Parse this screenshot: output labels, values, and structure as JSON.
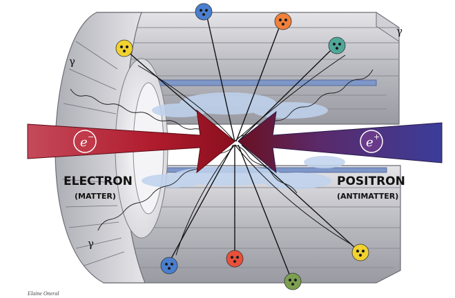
{
  "labels": {
    "electron": "ELECTRON",
    "electron_sub": "(MATTER)",
    "positron": "POSITRON",
    "positron_sub": "(ANTIMATTER)",
    "gamma": "γ",
    "electron_symbol": "e",
    "electron_charge": "−",
    "positron_symbol": "e",
    "positron_charge": "+",
    "credit": "Elaine Oneral"
  },
  "colors": {
    "electron_beam": "#b01c2e",
    "positron_beam": "#4a3a8a",
    "collision": "#6a1020",
    "detector": "#c9c9cf",
    "particle_yellow": "#f2d22e",
    "particle_blue": "#4a7fd0",
    "particle_orange": "#f0803a",
    "particle_teal": "#4fa89a",
    "particle_red": "#e8503a",
    "particle_green": "#7ca050"
  },
  "particles": [
    {
      "name": "particle-yellow-top-left",
      "color": "particle_yellow"
    },
    {
      "name": "particle-blue-top",
      "color": "particle_blue"
    },
    {
      "name": "particle-orange-top",
      "color": "particle_orange"
    },
    {
      "name": "particle-teal-top-right",
      "color": "particle_teal"
    },
    {
      "name": "particle-blue-bottom",
      "color": "particle_blue"
    },
    {
      "name": "particle-red-bottom",
      "color": "particle_red"
    },
    {
      "name": "particle-green-bottom",
      "color": "particle_green"
    },
    {
      "name": "particle-yellow-bottom-right",
      "color": "particle_yellow"
    }
  ]
}
